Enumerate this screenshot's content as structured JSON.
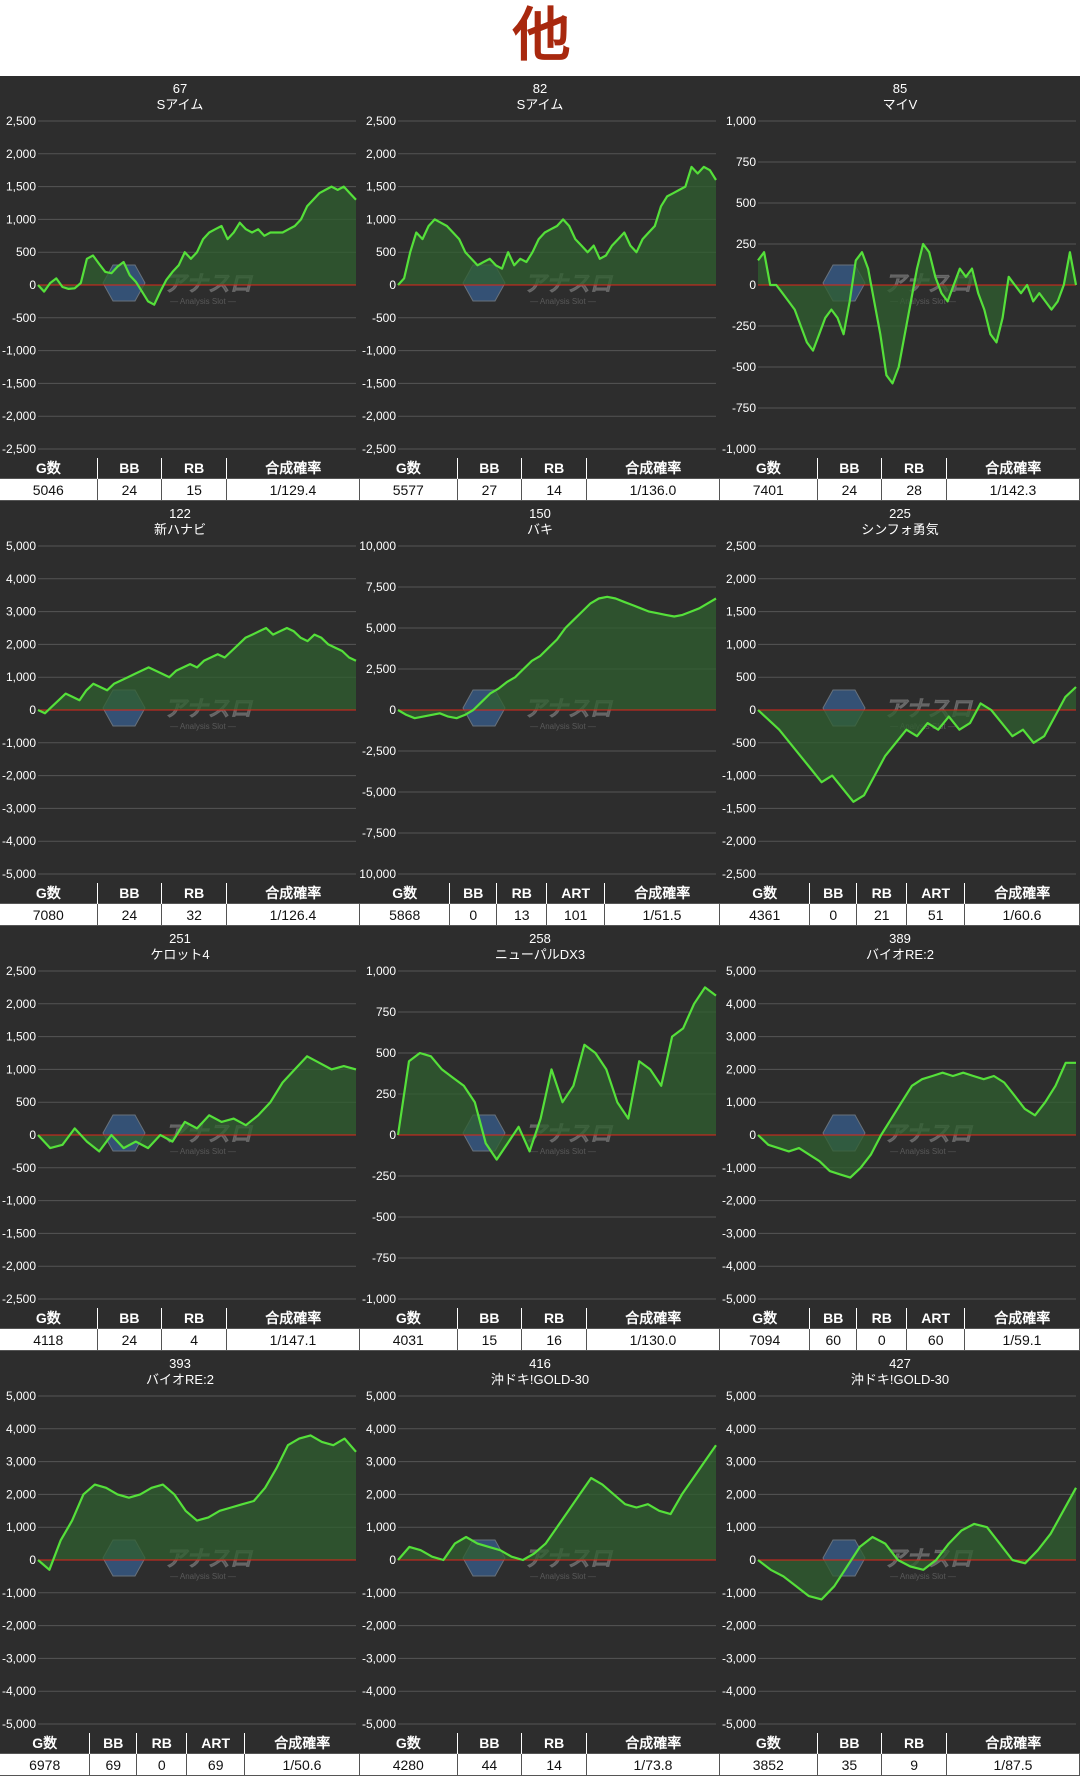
{
  "page": {
    "title": "他"
  },
  "colors": {
    "background": "#2d2d2d",
    "line": "#55e03a",
    "fill": "#2f5f2f",
    "zero_line": "#e0251b",
    "grid": "#555555",
    "title_red": "#a8280e"
  },
  "watermark": {
    "brand": "アナスロ",
    "sub": "— Analysis Slot —"
  },
  "chart_data": [
    {
      "type": "area",
      "number": "67",
      "name": "Sアイム",
      "ylim": [
        -2500,
        2500
      ],
      "yticks": [
        "2,500",
        "2,000",
        "1,500",
        "1,000",
        "500",
        "0",
        "-500",
        "-1,000",
        "-1,500",
        "-2,000",
        "-2,500"
      ],
      "values": [
        0,
        -100,
        30,
        100,
        -30,
        -60,
        -50,
        30,
        400,
        450,
        320,
        200,
        180,
        280,
        350,
        150,
        50,
        -100,
        -250,
        -300,
        -100,
        80,
        200,
        300,
        500,
        400,
        500,
        700,
        800,
        850,
        900,
        700,
        800,
        950,
        850,
        800,
        850,
        750,
        800,
        800,
        800,
        850,
        900,
        1000,
        1200,
        1300,
        1400,
        1450,
        1500,
        1450,
        1500,
        1400,
        1300
      ],
      "stats": {
        "headers": [
          "G数",
          "BB",
          "RB",
          "合成確率"
        ],
        "values": [
          "5046",
          "24",
          "15",
          "1/129.4"
        ]
      }
    },
    {
      "type": "area",
      "number": "82",
      "name": "Sアイム",
      "ylim": [
        -2500,
        2500
      ],
      "yticks": [
        "2,500",
        "2,000",
        "1,500",
        "1,000",
        "500",
        "0",
        "-500",
        "-1,000",
        "-1,500",
        "-2,000",
        "-2,500"
      ],
      "values": [
        0,
        100,
        500,
        800,
        700,
        900,
        1000,
        950,
        900,
        800,
        700,
        500,
        400,
        300,
        350,
        400,
        300,
        250,
        500,
        300,
        400,
        350,
        500,
        700,
        800,
        850,
        900,
        1000,
        900,
        700,
        600,
        500,
        600,
        400,
        450,
        600,
        700,
        800,
        600,
        500,
        700,
        800,
        900,
        1200,
        1350,
        1400,
        1450,
        1500,
        1800,
        1700,
        1800,
        1750,
        1600
      ],
      "stats": {
        "headers": [
          "G数",
          "BB",
          "RB",
          "合成確率"
        ],
        "values": [
          "5577",
          "27",
          "14",
          "1/136.0"
        ]
      }
    },
    {
      "type": "area",
      "number": "85",
      "name": "マイV",
      "ylim": [
        -1000,
        1000
      ],
      "yticks": [
        "1,000",
        "750",
        "500",
        "250",
        "0",
        "-250",
        "-500",
        "-750",
        "-1,000"
      ],
      "values": [
        150,
        200,
        0,
        0,
        -50,
        -100,
        -150,
        -250,
        -350,
        -400,
        -300,
        -200,
        -150,
        -200,
        -300,
        -100,
        150,
        200,
        100,
        -100,
        -300,
        -550,
        -600,
        -500,
        -300,
        -100,
        100,
        250,
        200,
        50,
        -50,
        -100,
        0,
        100,
        50,
        100,
        -50,
        -150,
        -300,
        -350,
        -200,
        50,
        0,
        -50,
        0,
        -100,
        -50,
        -100,
        -150,
        -100,
        0,
        200,
        0
      ],
      "stats": {
        "headers": [
          "G数",
          "BB",
          "RB",
          "合成確率"
        ],
        "values": [
          "7401",
          "24",
          "28",
          "1/142.3"
        ]
      }
    },
    {
      "type": "area",
      "number": "122",
      "name": "新ハナビ",
      "ylim": [
        -5000,
        5000
      ],
      "yticks": [
        "5,000",
        "4,000",
        "3,000",
        "2,000",
        "1,000",
        "0",
        "-1,000",
        "-2,000",
        "-3,000",
        "-4,000",
        "-5,000"
      ],
      "values": [
        0,
        -100,
        100,
        300,
        500,
        400,
        300,
        600,
        800,
        700,
        600,
        800,
        900,
        1000,
        1100,
        1200,
        1300,
        1200,
        1100,
        1000,
        1200,
        1300,
        1400,
        1300,
        1500,
        1600,
        1700,
        1600,
        1800,
        2000,
        2200,
        2300,
        2400,
        2500,
        2300,
        2400,
        2500,
        2400,
        2200,
        2100,
        2300,
        2200,
        2000,
        1900,
        1800,
        1600,
        1500
      ],
      "stats": {
        "headers": [
          "G数",
          "BB",
          "RB",
          "合成確率"
        ],
        "values": [
          "7080",
          "24",
          "32",
          "1/126.4"
        ]
      }
    },
    {
      "type": "area",
      "number": "150",
      "name": "バキ",
      "ylim": [
        -10000,
        10000
      ],
      "yticks": [
        "10,000",
        "7,500",
        "5,000",
        "2,500",
        "0",
        "-2,500",
        "-5,000",
        "-7,500",
        "-10,000"
      ],
      "values": [
        0,
        -300,
        -500,
        -400,
        -300,
        -200,
        -400,
        -500,
        -300,
        0,
        500,
        1000,
        1300,
        1700,
        2000,
        2500,
        3000,
        3300,
        3800,
        4300,
        5000,
        5500,
        6000,
        6500,
        6800,
        6900,
        6800,
        6600,
        6400,
        6200,
        6000,
        5900,
        5800,
        5700,
        5800,
        6000,
        6200,
        6500,
        6800
      ],
      "stats": {
        "headers": [
          "G数",
          "BB",
          "RB",
          "ART",
          "合成確率"
        ],
        "values": [
          "5868",
          "0",
          "13",
          "101",
          "1/51.5"
        ]
      }
    },
    {
      "type": "area",
      "number": "225",
      "name": "シンフォ勇気",
      "ylim": [
        -2500,
        2500
      ],
      "yticks": [
        "2,500",
        "2,000",
        "1,500",
        "1,000",
        "500",
        "0",
        "-500",
        "-1,000",
        "-1,500",
        "-2,000",
        "-2,500"
      ],
      "values": [
        0,
        -150,
        -300,
        -500,
        -700,
        -900,
        -1100,
        -1000,
        -1200,
        -1400,
        -1300,
        -1000,
        -700,
        -500,
        -300,
        -400,
        -200,
        -300,
        -100,
        -300,
        -200,
        100,
        0,
        -200,
        -400,
        -300,
        -500,
        -400,
        -100,
        200,
        350
      ],
      "stats": {
        "headers": [
          "G数",
          "BB",
          "RB",
          "ART",
          "合成確率"
        ],
        "values": [
          "4361",
          "0",
          "21",
          "51",
          "1/60.6"
        ]
      }
    },
    {
      "type": "area",
      "number": "251",
      "name": "ケロット4",
      "ylim": [
        -2500,
        2500
      ],
      "yticks": [
        "2,500",
        "2,000",
        "1,500",
        "1,000",
        "500",
        "0",
        "-500",
        "-1,000",
        "-1,500",
        "-2,000",
        "-2,500"
      ],
      "values": [
        0,
        -200,
        -150,
        100,
        -100,
        -250,
        0,
        -200,
        -100,
        -200,
        0,
        -100,
        200,
        100,
        300,
        200,
        250,
        150,
        300,
        500,
        800,
        1000,
        1200,
        1100,
        1000,
        1050,
        1000
      ],
      "stats": {
        "headers": [
          "G数",
          "BB",
          "RB",
          "合成確率"
        ],
        "values": [
          "4118",
          "24",
          "4",
          "1/147.1"
        ]
      }
    },
    {
      "type": "area",
      "number": "258",
      "name": "ニューパルDX3",
      "ylim": [
        -1000,
        1000
      ],
      "yticks": [
        "1,000",
        "750",
        "500",
        "250",
        "0",
        "-250",
        "-500",
        "-750",
        "-1,000"
      ],
      "values": [
        0,
        450,
        500,
        480,
        400,
        350,
        300,
        200,
        -50,
        -150,
        -50,
        50,
        -100,
        100,
        400,
        200,
        300,
        550,
        500,
        400,
        200,
        100,
        450,
        400,
        300,
        600,
        650,
        800,
        900,
        850
      ],
      "stats": {
        "headers": [
          "G数",
          "BB",
          "RB",
          "合成確率"
        ],
        "values": [
          "4031",
          "15",
          "16",
          "1/130.0"
        ]
      }
    },
    {
      "type": "area",
      "number": "389",
      "name": "バイオRE:2",
      "ylim": [
        -5000,
        5000
      ],
      "yticks": [
        "5,000",
        "4,000",
        "3,000",
        "2,000",
        "1,000",
        "0",
        "-1,000",
        "-2,000",
        "-3,000",
        "-4,000",
        "-5,000"
      ],
      "values": [
        0,
        -300,
        -400,
        -500,
        -400,
        -600,
        -800,
        -1100,
        -1200,
        -1300,
        -1000,
        -600,
        0,
        500,
        1000,
        1500,
        1700,
        1800,
        1900,
        1800,
        1900,
        1800,
        1700,
        1800,
        1600,
        1200,
        800,
        600,
        1000,
        1500,
        2200,
        2200
      ],
      "stats": {
        "headers": [
          "G数",
          "BB",
          "RB",
          "ART",
          "合成確率"
        ],
        "values": [
          "7094",
          "60",
          "0",
          "60",
          "1/59.1"
        ]
      }
    },
    {
      "type": "area",
      "number": "393",
      "name": "バイオRE:2",
      "ylim": [
        -5000,
        5000
      ],
      "yticks": [
        "5,000",
        "4,000",
        "3,000",
        "2,000",
        "1,000",
        "0",
        "-1,000",
        "-2,000",
        "-3,000",
        "-4,000",
        "-5,000"
      ],
      "values": [
        0,
        -300,
        600,
        1200,
        2000,
        2300,
        2200,
        2000,
        1900,
        2000,
        2200,
        2300,
        2000,
        1500,
        1200,
        1300,
        1500,
        1600,
        1700,
        1800,
        2200,
        2800,
        3500,
        3700,
        3800,
        3600,
        3500,
        3700,
        3300
      ],
      "stats": {
        "headers": [
          "G数",
          "BB",
          "RB",
          "ART",
          "合成確率"
        ],
        "values": [
          "6978",
          "69",
          "0",
          "69",
          "1/50.6"
        ]
      }
    },
    {
      "type": "area",
      "number": "416",
      "name": "沖ドキ!GOLD-30",
      "ylim": [
        -5000,
        5000
      ],
      "yticks": [
        "5,000",
        "4,000",
        "3,000",
        "2,000",
        "1,000",
        "0",
        "-1,000",
        "-2,000",
        "-3,000",
        "-4,000",
        "-5,000"
      ],
      "values": [
        0,
        400,
        300,
        100,
        0,
        500,
        700,
        500,
        400,
        300,
        100,
        0,
        200,
        500,
        1000,
        1500,
        2000,
        2500,
        2300,
        2000,
        1700,
        1600,
        1700,
        1500,
        1400,
        2000,
        2500,
        3000,
        3500
      ],
      "stats": {
        "headers": [
          "G数",
          "BB",
          "RB",
          "合成確率"
        ],
        "values": [
          "4280",
          "44",
          "14",
          "1/73.8"
        ]
      }
    },
    {
      "type": "area",
      "number": "427",
      "name": "沖ドキ!GOLD-30",
      "ylim": [
        -5000,
        5000
      ],
      "yticks": [
        "5,000",
        "4,000",
        "3,000",
        "2,000",
        "1,000",
        "0",
        "-1,000",
        "-2,000",
        "-3,000",
        "-4,000",
        "-5,000"
      ],
      "values": [
        0,
        -300,
        -500,
        -800,
        -1100,
        -1200,
        -800,
        -200,
        400,
        700,
        500,
        0,
        -200,
        -300,
        0,
        500,
        900,
        1100,
        1000,
        500,
        0,
        -100,
        300,
        800,
        1500,
        2200
      ],
      "stats": {
        "headers": [
          "G数",
          "BB",
          "RB",
          "合成確率"
        ],
        "values": [
          "3852",
          "35",
          "9",
          "1/87.5"
        ]
      }
    }
  ]
}
